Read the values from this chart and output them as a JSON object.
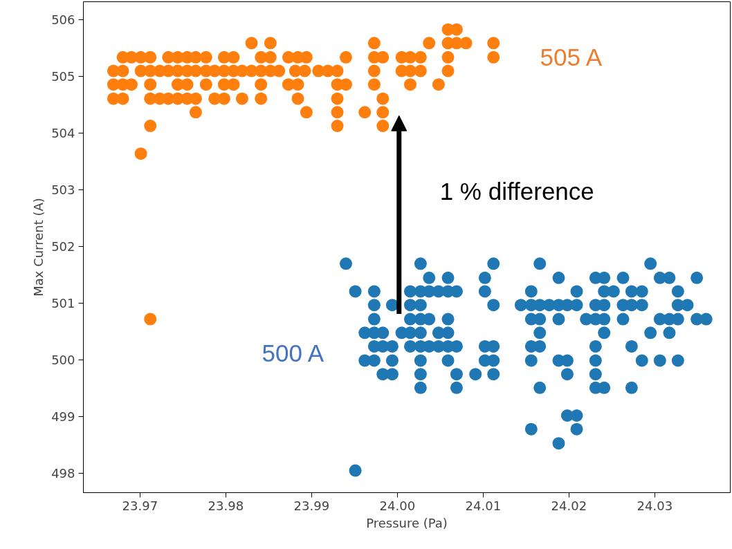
{
  "chart_data": {
    "type": "scatter",
    "xlabel": "Pressure (Pa)",
    "ylabel": "Max Current (A)",
    "xlim": [
      23.9634,
      24.0388
    ],
    "ylim": [
      497.66,
      506.32
    ],
    "xticks": [
      23.97,
      23.98,
      23.99,
      {
        "value": 24.0,
        "label": "24.00"
      },
      24.01,
      24.02,
      24.03
    ],
    "yticks": [
      498,
      499,
      500,
      501,
      502,
      503,
      504,
      505,
      506
    ],
    "grid": false,
    "marker": "circle",
    "series": [
      {
        "color": "#1f77b4",
        "x": [
          23.994,
          24.0027,
          24.0112,
          24.0166,
          24.0295,
          24.0037,
          24.0059,
          24.0102,
          24.0188,
          24.0231,
          24.0241,
          24.0263,
          24.0306,
          24.0317,
          24.0349,
          23.9951,
          23.9973,
          24.0015,
          24.0027,
          24.0037,
          24.0048,
          24.0059,
          24.0069,
          24.0102,
          24.0156,
          24.0209,
          24.0241,
          24.0252,
          24.0273,
          24.0285,
          24.0327,
          23.9973,
          23.9994,
          24.0015,
          24.0027,
          24.0112,
          24.0144,
          24.0156,
          24.0166,
          24.0177,
          24.0188,
          24.0198,
          24.0209,
          24.0231,
          24.0241,
          24.0263,
          24.0273,
          24.0285,
          24.0327,
          24.0338,
          23.9973,
          24.0015,
          24.0027,
          24.0037,
          24.0059,
          24.0156,
          24.0166,
          24.0188,
          24.022,
          24.0231,
          24.0241,
          24.0263,
          24.0306,
          24.0317,
          24.0327,
          24.0349,
          24.036,
          23.9962,
          23.9973,
          23.9983,
          24.0005,
          24.0015,
          24.0027,
          24.0048,
          24.0059,
          24.0166,
          24.0241,
          24.0295,
          24.0317,
          23.9973,
          23.9983,
          23.9994,
          24.0015,
          24.0027,
          24.0037,
          24.0048,
          24.0059,
          24.0069,
          24.0102,
          24.0112,
          24.0156,
          24.0166,
          24.0231,
          24.0273,
          23.9962,
          23.9973,
          23.9994,
          24.0027,
          24.0059,
          24.0102,
          24.0112,
          24.0156,
          24.0188,
          24.0198,
          24.0231,
          24.0285,
          24.0306,
          24.0327,
          23.9983,
          23.9994,
          24.0027,
          24.0069,
          24.0091,
          24.0112,
          24.0198,
          24.0231,
          24.0027,
          24.0069,
          24.0166,
          24.0231,
          24.0241,
          24.0273,
          24.0198,
          24.0209,
          24.0156,
          24.0209,
          24.0188,
          23.9951
        ],
        "values": [
          501.7,
          501.7,
          501.7,
          501.7,
          501.7,
          501.45,
          501.45,
          501.45,
          501.45,
          501.45,
          501.45,
          501.45,
          501.45,
          501.45,
          501.45,
          501.21,
          501.21,
          501.21,
          501.21,
          501.21,
          501.21,
          501.21,
          501.21,
          501.21,
          501.21,
          501.21,
          501.21,
          501.21,
          501.21,
          501.21,
          501.21,
          500.97,
          500.97,
          500.97,
          500.97,
          500.97,
          500.97,
          500.97,
          500.97,
          500.97,
          500.97,
          500.97,
          500.97,
          500.97,
          500.97,
          500.97,
          500.97,
          500.97,
          500.97,
          500.97,
          500.72,
          500.72,
          500.72,
          500.72,
          500.72,
          500.72,
          500.72,
          500.72,
          500.72,
          500.72,
          500.72,
          500.72,
          500.72,
          500.72,
          500.72,
          500.72,
          500.72,
          500.48,
          500.48,
          500.48,
          500.48,
          500.48,
          500.48,
          500.48,
          500.48,
          500.48,
          500.48,
          500.48,
          500.48,
          500.24,
          500.24,
          500.24,
          500.24,
          500.24,
          500.24,
          500.24,
          500.24,
          500.24,
          500.24,
          500.24,
          500.24,
          500.24,
          500.24,
          500.24,
          499.99,
          499.99,
          499.99,
          499.99,
          499.99,
          499.99,
          499.99,
          499.99,
          499.99,
          499.99,
          499.99,
          499.99,
          499.99,
          499.99,
          499.75,
          499.75,
          499.75,
          499.75,
          499.75,
          499.75,
          499.75,
          499.75,
          499.51,
          499.51,
          499.51,
          499.51,
          499.51,
          499.51,
          499.02,
          499.02,
          498.78,
          498.78,
          498.53,
          498.05
        ]
      },
      {
        "color": "#ff7f0e",
        "x": [
          24.0059,
          24.0069,
          23.983,
          23.9852,
          23.9973,
          24.0037,
          24.0059,
          24.0069,
          24.008,
          24.0112,
          23.968,
          23.969,
          23.9701,
          23.9712,
          23.9733,
          23.9744,
          23.9755,
          23.9765,
          23.9777,
          23.9798,
          23.9809,
          23.9841,
          23.9852,
          23.9873,
          23.9884,
          23.9894,
          23.994,
          23.9973,
          23.9983,
          24.0005,
          24.0015,
          24.0027,
          24.0059,
          24.0112,
          23.9669,
          23.968,
          23.9701,
          23.9712,
          23.9723,
          23.9733,
          23.9744,
          23.9755,
          23.9765,
          23.9777,
          23.9787,
          23.9798,
          23.9809,
          23.9819,
          23.983,
          23.9841,
          23.9852,
          23.9862,
          23.9881,
          23.9892,
          23.9908,
          23.9919,
          23.993,
          23.9973,
          24.0005,
          24.0015,
          24.0027,
          24.0059,
          23.9669,
          23.968,
          23.969,
          23.9712,
          23.9744,
          23.9755,
          23.9777,
          23.9798,
          23.9809,
          23.9841,
          23.9873,
          23.9884,
          23.993,
          23.994,
          23.9973,
          24.0015,
          24.0048,
          23.9669,
          23.968,
          23.9712,
          23.9723,
          23.9733,
          23.9744,
          23.9755,
          23.9765,
          23.9787,
          23.9798,
          23.9819,
          23.9841,
          23.9884,
          23.993,
          23.9983,
          23.9765,
          23.9894,
          23.993,
          23.9962,
          23.9983,
          23.9712,
          23.993,
          23.9983,
          23.9701,
          23.9712
        ],
        "values": [
          505.83,
          505.83,
          505.59,
          505.59,
          505.59,
          505.59,
          505.59,
          505.59,
          505.59,
          505.59,
          505.34,
          505.34,
          505.34,
          505.34,
          505.34,
          505.34,
          505.34,
          505.34,
          505.34,
          505.34,
          505.34,
          505.34,
          505.34,
          505.34,
          505.34,
          505.34,
          505.34,
          505.34,
          505.34,
          505.34,
          505.34,
          505.34,
          505.34,
          505.34,
          505.1,
          505.1,
          505.1,
          505.1,
          505.1,
          505.1,
          505.1,
          505.1,
          505.1,
          505.1,
          505.1,
          505.1,
          505.1,
          505.1,
          505.1,
          505.1,
          505.1,
          505.1,
          505.1,
          505.1,
          505.1,
          505.1,
          505.1,
          505.1,
          505.1,
          505.1,
          505.1,
          505.1,
          504.86,
          504.86,
          504.86,
          504.86,
          504.86,
          504.86,
          504.86,
          504.86,
          504.86,
          504.86,
          504.86,
          504.86,
          504.86,
          504.86,
          504.86,
          504.86,
          504.86,
          504.61,
          504.61,
          504.61,
          504.61,
          504.61,
          504.61,
          504.61,
          504.61,
          504.61,
          504.61,
          504.61,
          504.61,
          504.61,
          504.61,
          504.61,
          504.37,
          504.37,
          504.37,
          504.37,
          504.37,
          504.13,
          504.13,
          504.13,
          503.64,
          500.72
        ]
      }
    ],
    "annotations": [
      "500 A",
      "505 A",
      "1 % difference"
    ]
  }
}
